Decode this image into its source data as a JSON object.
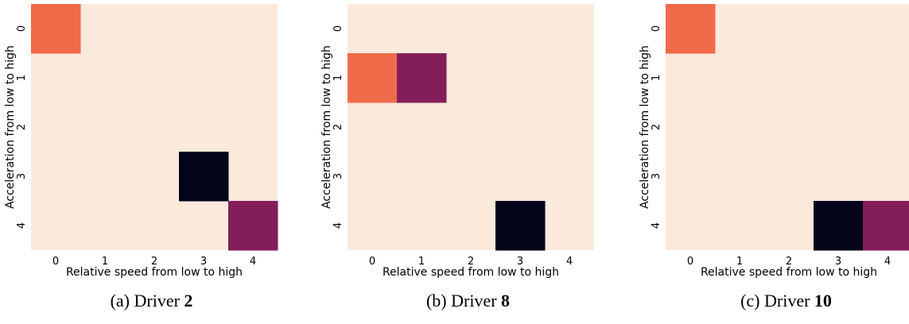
{
  "chart_data": [
    {
      "type": "heatmap",
      "xlabel": "Relative speed from low to high",
      "ylabel": "Acceleration from low to high",
      "xticks": [
        "0",
        "1",
        "2",
        "3",
        "4"
      ],
      "yticks": [
        "0",
        "1",
        "2",
        "3",
        "4"
      ],
      "cells": [
        {
          "row": 0,
          "col": 0,
          "level": 2
        },
        {
          "row": 3,
          "col": 3,
          "level": 0
        },
        {
          "row": 4,
          "col": 4,
          "level": 1
        }
      ],
      "caption_prefix": "(a) Driver ",
      "caption_bold": "2"
    },
    {
      "type": "heatmap",
      "xlabel": "Relative speed from low to high",
      "ylabel": "Acceleration from low to high",
      "xticks": [
        "0",
        "1",
        "2",
        "3",
        "4"
      ],
      "yticks": [
        "0",
        "1",
        "2",
        "3",
        "4"
      ],
      "cells": [
        {
          "row": 1,
          "col": 0,
          "level": 2
        },
        {
          "row": 1,
          "col": 1,
          "level": 1
        },
        {
          "row": 4,
          "col": 3,
          "level": 0
        }
      ],
      "caption_prefix": "(b) Driver ",
      "caption_bold": "8"
    },
    {
      "type": "heatmap",
      "xlabel": "Relative speed from low to high",
      "ylabel": "Acceleration from low to high",
      "xticks": [
        "0",
        "1",
        "2",
        "3",
        "4"
      ],
      "yticks": [
        "0",
        "1",
        "2",
        "3",
        "4"
      ],
      "cells": [
        {
          "row": 0,
          "col": 0,
          "level": 2
        },
        {
          "row": 4,
          "col": 3,
          "level": 0
        },
        {
          "row": 4,
          "col": 4,
          "level": 1
        }
      ],
      "caption_prefix": "(c) Driver ",
      "caption_bold": "10"
    }
  ],
  "colors": {
    "background_cell": "#fbe9dc",
    "levels": [
      "#03051a",
      "#841e5a",
      "#f06b4a"
    ]
  }
}
